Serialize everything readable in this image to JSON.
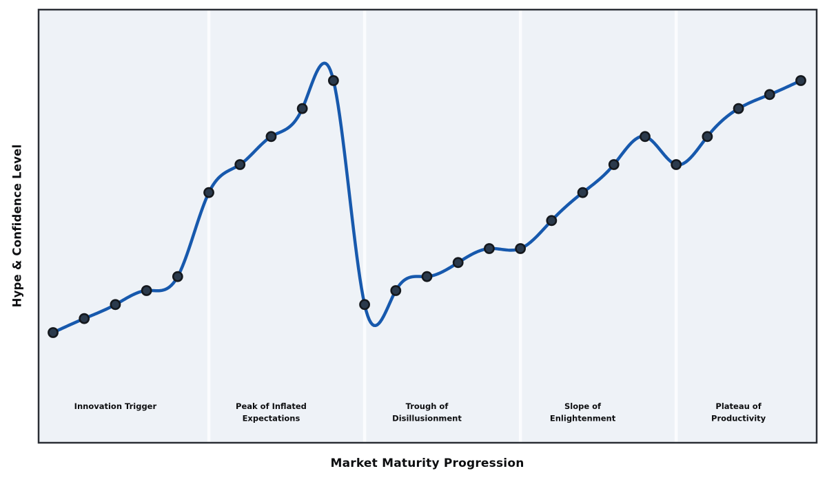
{
  "chart_data": {
    "type": "line",
    "title": "",
    "xlabel": "Market Maturity Progression",
    "ylabel": "Hype & Confidence Level",
    "x": [
      0,
      1,
      2,
      3,
      4,
      5,
      6,
      7,
      8,
      9,
      10,
      11,
      12,
      13,
      14,
      15,
      16,
      17,
      18,
      19,
      20,
      21,
      22,
      23,
      24
    ],
    "series": [
      {
        "name": "Hype",
        "values": [
          20,
          24,
          28,
          32,
          36,
          60,
          68,
          76,
          84,
          92,
          28,
          32,
          36,
          40,
          44,
          44,
          52,
          60,
          68,
          76,
          68,
          76,
          84,
          88,
          92
        ]
      }
    ],
    "xlim": [
      -0.5,
      24.5
    ],
    "ylim": [
      -12,
      112
    ],
    "grid": false,
    "smooth": true,
    "legend": "none",
    "axis_ticks": "none",
    "phases": [
      {
        "label_lines": [
          "Innovation Trigger"
        ],
        "start": 0,
        "end": 4
      },
      {
        "label_lines": [
          "Peak of Inflated",
          "Expectations"
        ],
        "start": 5,
        "end": 9
      },
      {
        "label_lines": [
          "Trough of",
          "Disillusionment"
        ],
        "start": 10,
        "end": 14
      },
      {
        "label_lines": [
          "Slope of",
          "Enlightenment"
        ],
        "start": 15,
        "end": 19
      },
      {
        "label_lines": [
          "Plateau of",
          "Productivity"
        ],
        "start": 20,
        "end": 24
      }
    ],
    "colors": {
      "line": "#1759ad",
      "marker_fill": "#2b3a4c",
      "marker_edge": "#14181d",
      "plot_background": "#eef2f7",
      "separator": "#fbfcfe",
      "frame": "#2a2e35",
      "text": "#0d0e10",
      "figure_background": "#ffffff"
    }
  }
}
